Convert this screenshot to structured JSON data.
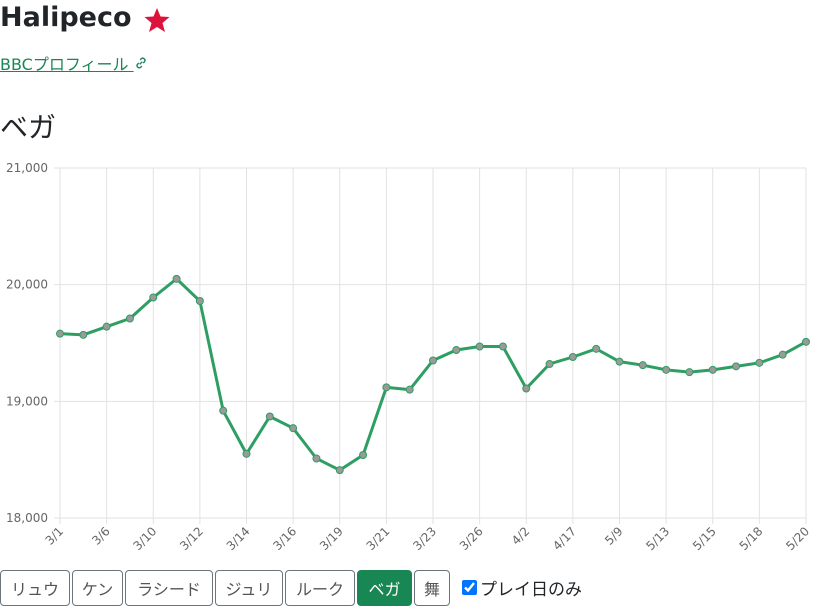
{
  "header": {
    "title": "Halipeco",
    "link": "BBCプロフィール"
  },
  "section": {
    "title": "ベガ"
  },
  "chart_data": {
    "type": "line",
    "color": "#2e9e62",
    "point_color": "#9a9a9a",
    "categories": [
      "3/1",
      null,
      "3/6",
      null,
      "3/10",
      null,
      "3/12",
      null,
      "3/14",
      null,
      "3/16",
      null,
      "3/19",
      null,
      "3/21",
      null,
      "3/23",
      null,
      "3/26",
      null,
      "4/2",
      null,
      "4/17",
      null,
      "5/9",
      null,
      "5/13",
      null,
      "5/15",
      null,
      "5/18",
      null,
      "5/20"
    ],
    "values": [
      19580,
      19570,
      19640,
      19710,
      19890,
      20050,
      19860,
      18920,
      18550,
      18870,
      18770,
      18510,
      18410,
      18540,
      19120,
      19100,
      19350,
      19440,
      19470,
      19470,
      19110,
      19320,
      19380,
      19450,
      19340,
      19310,
      19270,
      19250,
      19270,
      19300,
      19330,
      19400,
      19510
    ],
    "ylim": [
      18000,
      21000
    ],
    "yticks": [
      {
        "value": 18000,
        "label": "18,000"
      },
      {
        "value": 19000,
        "label": "19,000"
      },
      {
        "value": 20000,
        "label": "20,000"
      },
      {
        "value": 21000,
        "label": "21,000"
      }
    ],
    "grid": true
  },
  "controls": {
    "buttons": [
      "リュウ",
      "ケン",
      "ラシード",
      "ジュリ",
      "ルーク",
      "ベガ",
      "舞"
    ],
    "checkbox_label": "プレイ日のみ"
  }
}
